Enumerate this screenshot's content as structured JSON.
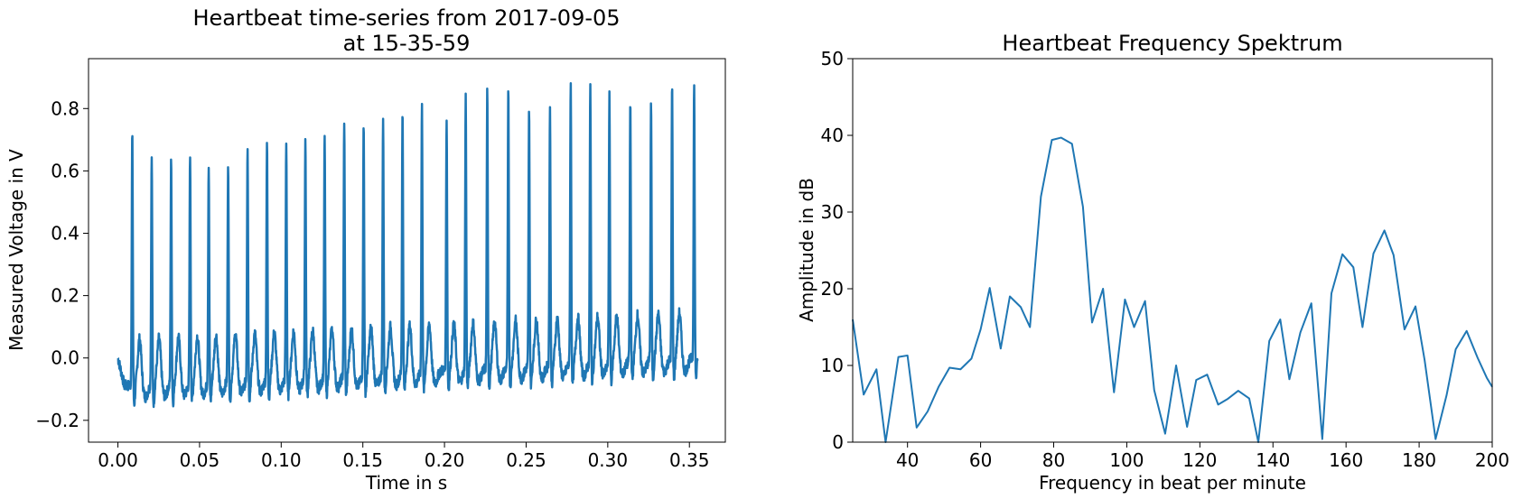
{
  "chart_data": [
    {
      "type": "line",
      "title_line1": "Heartbeat time-series from 2017-09-05",
      "title_line2": "at 15-35-59",
      "xlabel": "Time in s",
      "ylabel": "Measured Voltage in V",
      "xlim": [
        -0.018,
        0.372
      ],
      "ylim": [
        -0.27,
        0.96
      ],
      "xticks": [
        0.0,
        0.05,
        0.1,
        0.15,
        0.2,
        0.25,
        0.3,
        0.35
      ],
      "xtick_labels": [
        "0.00",
        "0.05",
        "0.10",
        "0.15",
        "0.20",
        "0.25",
        "0.30",
        "0.35"
      ],
      "yticks": [
        -0.2,
        0.0,
        0.2,
        0.4,
        0.6,
        0.8
      ],
      "ytick_labels": [
        "−0.2",
        "0.0",
        "0.2",
        "0.4",
        "0.6",
        "0.8"
      ],
      "color": "#1f77b4",
      "grid": false,
      "series": [
        {
          "beat_times": [
            0.0088,
            0.0207,
            0.0326,
            0.0442,
            0.0556,
            0.0675,
            0.0794,
            0.0913,
            0.1031,
            0.1148,
            0.1266,
            0.1386,
            0.1505,
            0.1624,
            0.1743,
            0.1862,
            0.2013,
            0.213,
            0.2262,
            0.2391,
            0.2518,
            0.2646,
            0.2773,
            0.2893,
            0.301,
            0.3138,
            0.3265,
            0.3394,
            0.3529
          ],
          "peak_values": [
            0.81,
            0.735,
            0.72,
            0.745,
            0.7,
            0.71,
            0.76,
            0.765,
            0.765,
            0.77,
            0.775,
            0.82,
            0.805,
            0.83,
            0.85,
            0.855,
            0.815,
            0.88,
            0.89,
            0.89,
            0.82,
            0.83,
            0.905,
            0.895,
            0.86,
            0.835,
            0.835,
            0.89,
            0.88
          ],
          "baseline_start": -0.09,
          "baseline_end": 0.0,
          "t_end": 0.355
        }
      ]
    },
    {
      "type": "line",
      "title": "Heartbeat Frequency Spektrum",
      "xlabel": "Frequency in beat per minute",
      "ylabel": "Amplitude in dB",
      "xlim": [
        25,
        200
      ],
      "ylim": [
        0,
        50
      ],
      "xticks": [
        40,
        60,
        80,
        100,
        120,
        140,
        160,
        180,
        200
      ],
      "xtick_labels": [
        "40",
        "60",
        "80",
        "100",
        "120",
        "140",
        "160",
        "180",
        "200"
      ],
      "yticks": [
        0,
        10,
        20,
        30,
        40,
        50
      ],
      "ytick_labels": [
        "0",
        "10",
        "20",
        "30",
        "40",
        "50"
      ],
      "color": "#1f77b4",
      "grid": false,
      "series": [
        {
          "x": [
            25.0,
            28.0,
            31.5,
            34.0,
            37.5,
            40.0,
            42.5,
            45.5,
            48.5,
            51.5,
            54.5,
            57.5,
            60.0,
            62.5,
            65.5,
            68.0,
            71.0,
            73.5,
            76.5,
            79.5,
            82.0,
            85.0,
            88.0,
            90.5,
            93.5,
            96.5,
            99.5,
            102.0,
            105.0,
            107.5,
            110.5,
            113.5,
            116.5,
            119.0,
            122.0,
            125.0,
            127.5,
            130.5,
            133.5,
            136.0,
            139.0,
            142.0,
            144.5,
            147.5,
            150.5,
            153.5,
            156.0,
            159.0,
            162.0,
            164.5,
            167.5,
            170.5,
            173.0,
            176.0,
            179.0,
            181.5,
            184.5,
            187.5,
            190.0,
            193.0,
            196.0,
            198.5,
            200.0
          ],
          "y": [
            16.0,
            6.2,
            9.5,
            0.0,
            11.1,
            11.3,
            1.9,
            4.0,
            7.2,
            9.7,
            9.5,
            10.9,
            14.7,
            20.1,
            12.2,
            19.0,
            17.6,
            15.0,
            32.0,
            39.4,
            39.7,
            38.9,
            30.7,
            15.6,
            20.0,
            6.5,
            18.6,
            15.0,
            18.4,
            6.8,
            1.1,
            10.0,
            2.0,
            8.1,
            8.8,
            4.9,
            5.6,
            6.7,
            5.7,
            0.0,
            13.2,
            16.0,
            8.2,
            14.3,
            18.1,
            0.4,
            19.4,
            24.5,
            22.8,
            15.0,
            24.6,
            27.6,
            24.4,
            14.7,
            17.7,
            10.7,
            0.4,
            6.1,
            12.1,
            14.5,
            11.0,
            8.4,
            7.2
          ]
        }
      ]
    }
  ]
}
